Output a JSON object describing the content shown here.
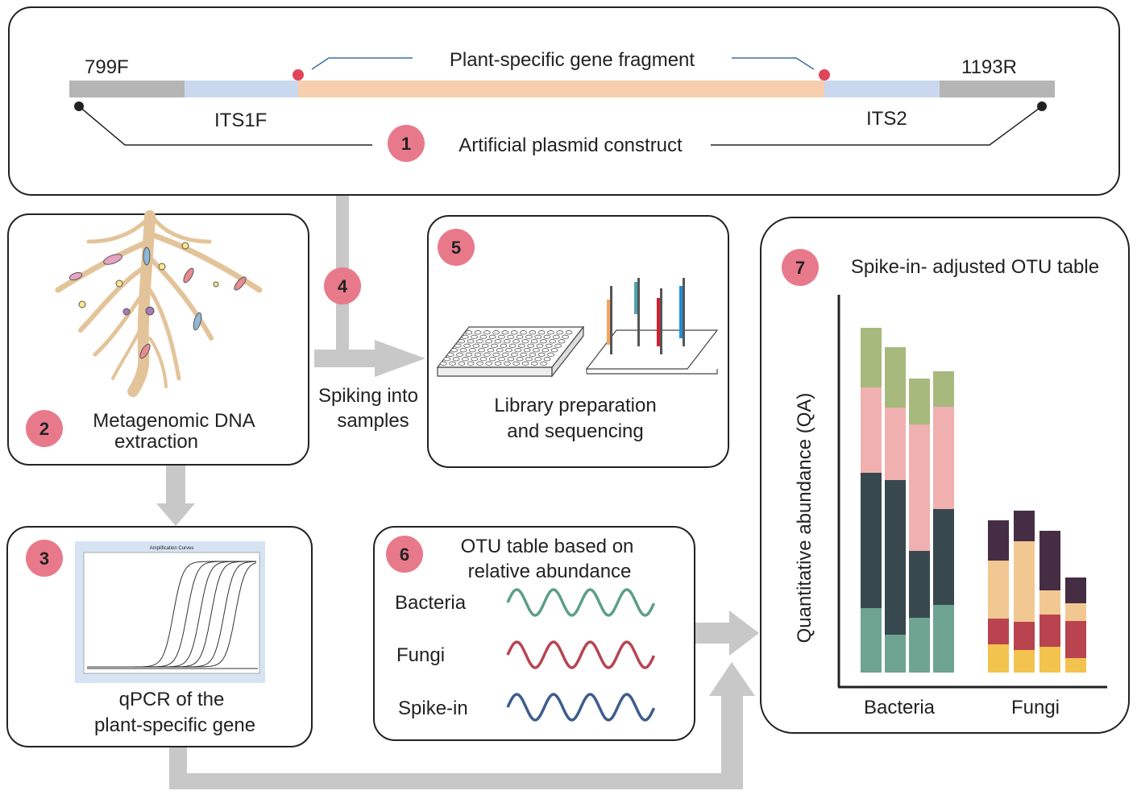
{
  "colors": {
    "badge": "#E8798B",
    "arrow": "#C8C8C8",
    "primer_grey": "#B5B5B5",
    "its_blue": "#C9D8EE",
    "gene_peach": "#F7CFAE",
    "marker_red": "#E0455A",
    "root": "#E3C49A"
  },
  "panel1": {
    "badge": "1",
    "title": "Artificial plasmid construct",
    "fragment_label": "Plant-specific gene fragment",
    "primer_left": "799F",
    "primer_right": "1193R",
    "its_left": "ITS1F",
    "its_right": "ITS2"
  },
  "panel2": {
    "badge": "2",
    "title_line1": "Metagenomic DNA",
    "title_line2": "extraction"
  },
  "panel3": {
    "badge": "3",
    "title_line1": "qPCR of the",
    "title_line2": "plant-specific gene",
    "plot_title": "Amplification Curves"
  },
  "step4": {
    "badge": "4",
    "label_line1": "Spiking into",
    "label_line2": "samples"
  },
  "panel5": {
    "badge": "5",
    "title_line1": "Library preparation",
    "title_line2": "and sequencing"
  },
  "panel6": {
    "badge": "6",
    "title_line1": "OTU table based on",
    "title_line2": "relative abundance",
    "rows": [
      {
        "label": "Bacteria",
        "color": "#5E9E88"
      },
      {
        "label": "Fungi",
        "color": "#B84452"
      },
      {
        "label": "Spike-in",
        "color": "#3E5C8E"
      }
    ]
  },
  "panel7": {
    "badge": "7",
    "title": "Spike-in- adjusted OTU table",
    "ylabel": "Quantitative abundance (QA)"
  },
  "chart_data": {
    "type": "bar",
    "stacked": true,
    "groups": [
      "Bacteria",
      "Fungi"
    ],
    "ylabel": "Quantitative abundance (QA)",
    "bacteria_bars": [
      {
        "segments": [
          {
            "value": 80,
            "color": "#6FA492"
          },
          {
            "value": 168,
            "color": "#37484E"
          },
          {
            "value": 106,
            "color": "#F0B0B0"
          },
          {
            "value": 74,
            "color": "#A7B97D"
          }
        ]
      },
      {
        "segments": [
          {
            "value": 47,
            "color": "#6FA492"
          },
          {
            "value": 192,
            "color": "#37484E"
          },
          {
            "value": 90,
            "color": "#F0B0B0"
          },
          {
            "value": 75,
            "color": "#A7B97D"
          }
        ]
      },
      {
        "segments": [
          {
            "value": 68,
            "color": "#6FA492"
          },
          {
            "value": 83,
            "color": "#37484E"
          },
          {
            "value": 157,
            "color": "#F0B0B0"
          },
          {
            "value": 57,
            "color": "#A7B97D"
          }
        ]
      },
      {
        "segments": [
          {
            "value": 84,
            "color": "#6FA492"
          },
          {
            "value": 119,
            "color": "#37484E"
          },
          {
            "value": 127,
            "color": "#F0B0B0"
          },
          {
            "value": 44,
            "color": "#A7B97D"
          }
        ]
      }
    ],
    "fungi_bars": [
      {
        "segments": [
          {
            "value": 35,
            "color": "#F2C34E"
          },
          {
            "value": 32,
            "color": "#B9434F"
          },
          {
            "value": 72,
            "color": "#F2C892"
          },
          {
            "value": 50,
            "color": "#452D44"
          }
        ]
      },
      {
        "segments": [
          {
            "value": 28,
            "color": "#F2C34E"
          },
          {
            "value": 35,
            "color": "#B9434F"
          },
          {
            "value": 100,
            "color": "#F2C892"
          },
          {
            "value": 38,
            "color": "#452D44"
          }
        ]
      },
      {
        "segments": [
          {
            "value": 32,
            "color": "#F2C34E"
          },
          {
            "value": 40,
            "color": "#B9434F"
          },
          {
            "value": 30,
            "color": "#F2C892"
          },
          {
            "value": 74,
            "color": "#452D44"
          }
        ]
      },
      {
        "segments": [
          {
            "value": 18,
            "color": "#F2C34E"
          },
          {
            "value": 46,
            "color": "#B9434F"
          },
          {
            "value": 22,
            "color": "#F2C892"
          },
          {
            "value": 32,
            "color": "#452D44"
          }
        ]
      }
    ]
  }
}
